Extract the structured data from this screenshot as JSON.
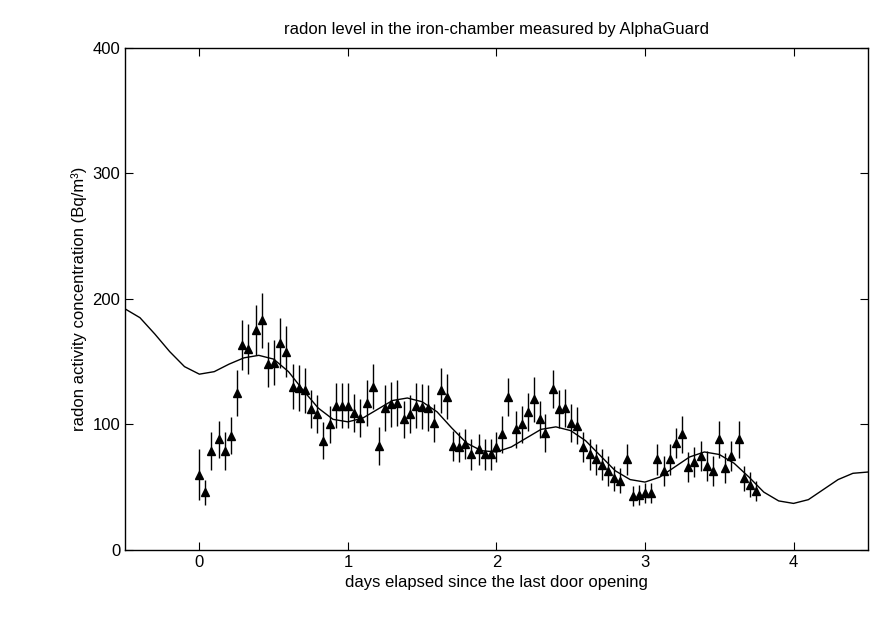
{
  "chart_data": {
    "type": "scatter",
    "title": "radon level in the iron-chamber measured by AlphaGuard",
    "x_label": "days elapsed since the last door opening",
    "y_label": "radon activity concentration (Bq/m³)",
    "xlim": [
      -0.5,
      4.5
    ],
    "xticks": [
      0,
      1,
      2,
      3,
      4
    ],
    "ylim": [
      0,
      400
    ],
    "yticks": [
      0,
      100,
      200,
      300,
      400
    ],
    "grid": false,
    "series": [
      {
        "type": "scatter",
        "color": "#000000",
        "marker": "triangle",
        "x": [
          0.0,
          0.04,
          0.08,
          0.13,
          0.17,
          0.21,
          0.25,
          0.29,
          0.33,
          0.38,
          0.42,
          0.46,
          0.5,
          0.54,
          0.58,
          0.63,
          0.67,
          0.71,
          0.75,
          0.79,
          0.83,
          0.88,
          0.92,
          0.96,
          1.0,
          1.04,
          1.08,
          1.13,
          1.17,
          1.21,
          1.25,
          1.29,
          1.33,
          1.38,
          1.42,
          1.46,
          1.5,
          1.54,
          1.58,
          1.63,
          1.67,
          1.71,
          1.75,
          1.79,
          1.83,
          1.88,
          1.92,
          1.96,
          2.0,
          2.04,
          2.08,
          2.13,
          2.17,
          2.21,
          2.25,
          2.29,
          2.33,
          2.38,
          2.42,
          2.46,
          2.5,
          2.54,
          2.58,
          2.63,
          2.67,
          2.71,
          2.75,
          2.79,
          2.83,
          2.88,
          2.92,
          2.96,
          3.0,
          3.04,
          3.08,
          3.13,
          3.17,
          3.21,
          3.25,
          3.29,
          3.33,
          3.38,
          3.42,
          3.46,
          3.5,
          3.54,
          3.58,
          3.63,
          3.67,
          3.71,
          3.75
        ],
        "values": [
          60,
          46,
          79,
          88,
          79,
          91,
          125,
          163,
          160,
          175,
          183,
          148,
          149,
          165,
          158,
          130,
          129,
          127,
          112,
          108,
          87,
          100,
          115,
          115,
          115,
          109,
          105,
          117,
          130,
          83,
          113,
          116,
          117,
          104,
          108,
          115,
          114,
          113,
          101,
          127,
          122,
          83,
          82,
          84,
          76,
          80,
          76,
          76,
          82,
          92,
          122,
          96,
          100,
          110,
          120,
          104,
          93,
          128,
          112,
          113,
          101,
          99,
          82,
          76,
          72,
          68,
          63,
          57,
          55,
          72,
          43,
          44,
          45,
          45,
          72,
          63,
          72,
          85,
          92,
          66,
          70,
          75,
          67,
          63,
          88,
          65,
          75,
          88,
          57,
          52,
          47
        ],
        "errors": [
          20,
          10,
          15,
          15,
          15,
          15,
          18,
          20,
          20,
          20,
          22,
          18,
          18,
          20,
          20,
          18,
          18,
          18,
          15,
          15,
          15,
          15,
          18,
          18,
          18,
          15,
          15,
          18,
          18,
          15,
          18,
          18,
          18,
          15,
          15,
          18,
          18,
          18,
          15,
          18,
          18,
          12,
          12,
          12,
          12,
          12,
          12,
          12,
          12,
          15,
          15,
          15,
          15,
          15,
          18,
          15,
          15,
          15,
          15,
          15,
          15,
          15,
          12,
          12,
          12,
          12,
          12,
          10,
          10,
          12,
          8,
          8,
          8,
          8,
          12,
          12,
          12,
          12,
          15,
          12,
          12,
          12,
          12,
          12,
          15,
          12,
          12,
          15,
          10,
          10,
          8
        ]
      },
      {
        "type": "line",
        "color": "#000000",
        "line_style": "solid",
        "x": [
          -0.5,
          -0.4,
          -0.3,
          -0.2,
          -0.1,
          0.0,
          0.1,
          0.2,
          0.3,
          0.4,
          0.5,
          0.6,
          0.7,
          0.8,
          0.9,
          1.0,
          1.1,
          1.2,
          1.3,
          1.4,
          1.5,
          1.6,
          1.7,
          1.8,
          1.9,
          2.0,
          2.1,
          2.2,
          2.3,
          2.4,
          2.5,
          2.6,
          2.7,
          2.8,
          2.9,
          3.0,
          3.1,
          3.2,
          3.3,
          3.4,
          3.5,
          3.6,
          3.7,
          3.8,
          3.9,
          4.0,
          4.1,
          4.2,
          4.3,
          4.4,
          4.5
        ],
        "values": [
          192,
          185,
          172,
          158,
          146,
          140,
          142,
          148,
          153,
          155,
          152,
          142,
          127,
          113,
          104,
          102,
          105,
          112,
          119,
          121,
          118,
          110,
          97,
          85,
          79,
          78,
          82,
          89,
          96,
          98,
          95,
          87,
          75,
          63,
          56,
          54,
          58,
          66,
          74,
          78,
          76,
          69,
          58,
          46,
          39,
          37,
          40,
          48,
          56,
          61,
          62
        ]
      }
    ]
  }
}
